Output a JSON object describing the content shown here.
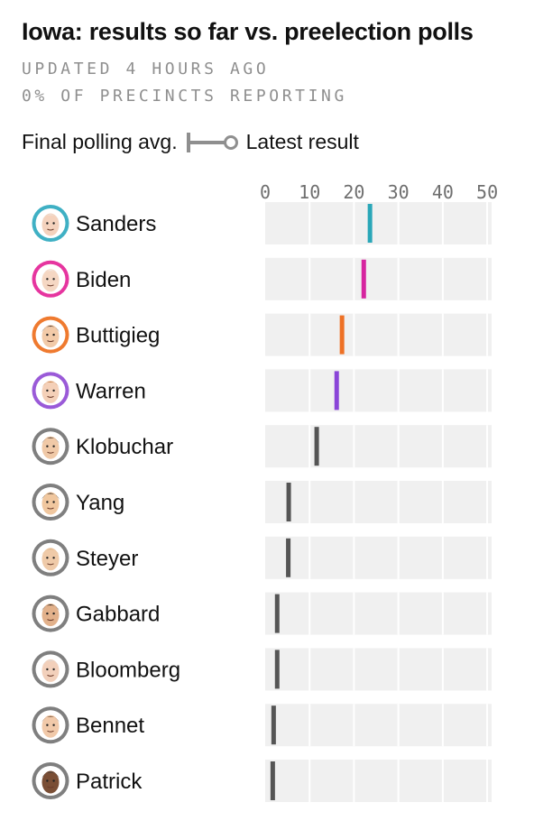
{
  "title": "Iowa: results so far vs. preelection polls",
  "updated": "UPDATED 4 HOURS AGO",
  "reporting": "0% OF PRECINCTS REPORTING",
  "legend": {
    "polling_label": "Final polling avg.",
    "result_label": "Latest result"
  },
  "colors": {
    "background": "#ffffff",
    "track": "#f0f0f0",
    "gridline": "#ffffff",
    "default_marker": "#555555",
    "meta_text": "#8f8f8f",
    "legend_marker": "#8f8f8f"
  },
  "chart_data": {
    "type": "bar",
    "description_of_marks": "vertical tick marks at final polling average",
    "xlim": [
      0,
      51
    ],
    "x_ticks": [
      0,
      10,
      20,
      30,
      40,
      50
    ],
    "x_tick_labels": [
      "0",
      "10",
      "20",
      "30",
      "40",
      "50"
    ],
    "grid": true,
    "categories": [
      "Sanders",
      "Biden",
      "Buttigieg",
      "Warren",
      "Klobuchar",
      "Yang",
      "Steyer",
      "Gabbard",
      "Bloomberg",
      "Bennet",
      "Patrick"
    ],
    "series": [
      {
        "name": "Final polling avg.",
        "values": [
          23.6,
          22.2,
          17.3,
          16.1,
          11.6,
          5.3,
          5.2,
          2.7,
          2.7,
          1.9,
          1.7
        ]
      }
    ],
    "marker_colors": [
      "#2aa7b8",
      "#d6249f",
      "#ee7125",
      "#8a45d8",
      "#555555",
      "#555555",
      "#555555",
      "#555555",
      "#555555",
      "#555555",
      "#555555"
    ],
    "avatar_colors": [
      "#3fb0c4",
      "#e6359f",
      "#ef7a2f",
      "#9a5ad8",
      "#7f7f7f",
      "#7f7f7f",
      "#7f7f7f",
      "#7f7f7f",
      "#7f7f7f",
      "#7f7f7f",
      "#7f7f7f"
    ],
    "skin_colors": [
      "#f4d2bd",
      "#f5d7c3",
      "#f2caa8",
      "#f4d0b8",
      "#f0c9a7",
      "#f0c79f",
      "#efcaa8",
      "#e2b18b",
      "#f2d0bb",
      "#f1c9a9",
      "#7a4e35"
    ],
    "hair_colors": [
      "#e7e7e7",
      "#efefef",
      "#3b2d25",
      "#c07a3c",
      "#3a2a20",
      "#1f1b18",
      "#d7b07a",
      "#111111",
      "#d9d9d9",
      "#6b4a32",
      "#3a3a3a"
    ]
  }
}
